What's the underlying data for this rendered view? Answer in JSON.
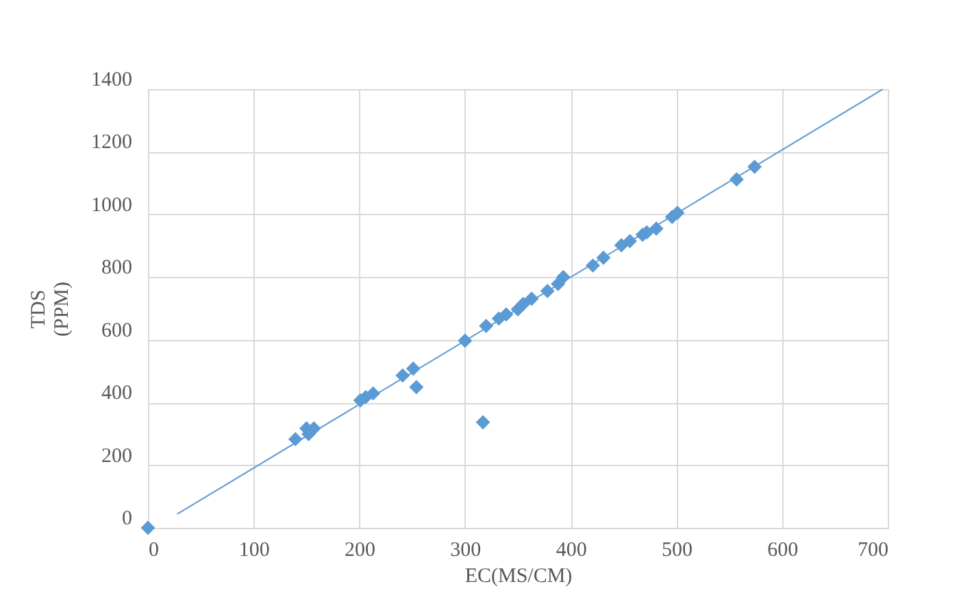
{
  "chart_data": {
    "type": "scatter",
    "xlabel": "EC(MS/CM)",
    "ylabel": "TDS (PPM)",
    "xlim": [
      0,
      700
    ],
    "ylim": [
      0,
      1400
    ],
    "xticks": [
      0,
      100,
      200,
      300,
      400,
      500,
      600,
      700
    ],
    "yticks": [
      0,
      200,
      400,
      600,
      800,
      1000,
      1200,
      1400
    ],
    "grid": true,
    "series": [
      {
        "marker": "diamond",
        "color": "#5b9bd5",
        "x": [
          0,
          139.5,
          150,
          157,
          152,
          201,
          206,
          213,
          241,
          251,
          254,
          300,
          320,
          317,
          332,
          339,
          350,
          355,
          363,
          378,
          388,
          393,
          421,
          431,
          448,
          456,
          468,
          472,
          481,
          496,
          501,
          557,
          574
        ],
        "values": [
          0,
          283,
          317,
          317,
          299,
          407,
          417,
          429,
          486,
          508,
          449,
          597,
          644,
          337,
          668,
          681,
          697,
          714,
          731,
          756,
          778,
          800,
          837,
          862,
          902,
          915,
          935,
          943,
          955,
          992,
          1005,
          1112,
          1152
        ]
      },
      {
        "type": "line",
        "color": "#5b9bd5",
        "line_style": "solid",
        "x": [
          27.7,
          695
        ],
        "values": [
          44,
          1399
        ]
      }
    ]
  }
}
